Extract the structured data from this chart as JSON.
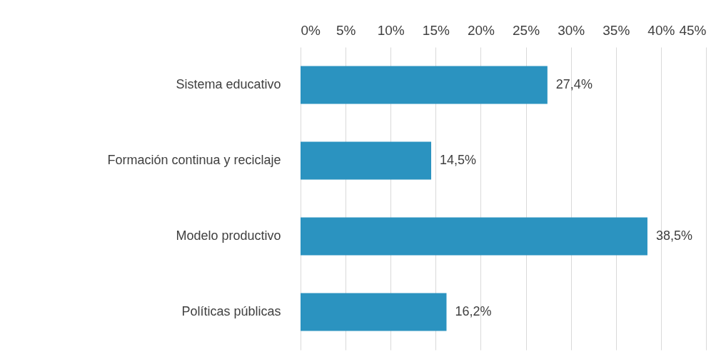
{
  "chart_data": {
    "type": "bar",
    "orientation": "horizontal",
    "categories": [
      "Sistema educativo",
      "Formación continua y reciclaje",
      "Modelo productivo",
      "Políticas públicas"
    ],
    "values": [
      27.4,
      14.5,
      38.5,
      16.2
    ],
    "value_labels": [
      "27,4%",
      "14,5%",
      "38,5%",
      "16,2%"
    ],
    "color": "#2b93c0",
    "xlim": [
      0,
      45
    ],
    "xticks": [
      {
        "value": 0,
        "label": "0%"
      },
      {
        "value": 5,
        "label": "5%"
      },
      {
        "value": 10,
        "label": "10%"
      },
      {
        "value": 15,
        "label": "15%"
      },
      {
        "value": 20,
        "label": "20%"
      },
      {
        "value": 25,
        "label": "25%"
      },
      {
        "value": 30,
        "label": "30%"
      },
      {
        "value": 35,
        "label": "35%"
      },
      {
        "value": 40,
        "label": "40%"
      },
      {
        "value": 45,
        "label": "45%"
      }
    ],
    "grid": "x"
  }
}
